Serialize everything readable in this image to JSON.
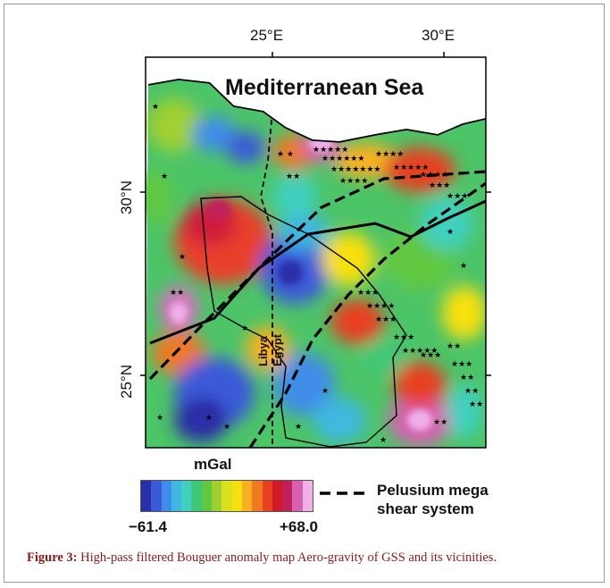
{
  "map": {
    "x_ticks": [
      "25°E",
      "30°E"
    ],
    "y_ticks": [
      "30°N",
      "25°N"
    ],
    "sea_label": "Mediterranean Sea",
    "country_labels": [
      "Libya",
      "Egypt"
    ]
  },
  "legend": {
    "unit": "mGal",
    "min_label": "−61.4",
    "max_label": "+68.0",
    "line_label_1": "Pelusium mega",
    "line_label_2": "shear system",
    "colors": [
      "#2a2fa8",
      "#3a5ad8",
      "#3f8de8",
      "#40b7e0",
      "#3fd0c0",
      "#3fc878",
      "#60c840",
      "#a0d030",
      "#d8e020",
      "#f8e010",
      "#f8b020",
      "#f07820",
      "#e84020",
      "#d01a2a",
      "#c0205a",
      "#d860b0",
      "#f0b0e8"
    ]
  },
  "caption": {
    "label": "Figure 3:",
    "text": " High-pass filtered Bouguer anomaly map Aero-gravity of GSS and its vicinities."
  }
}
